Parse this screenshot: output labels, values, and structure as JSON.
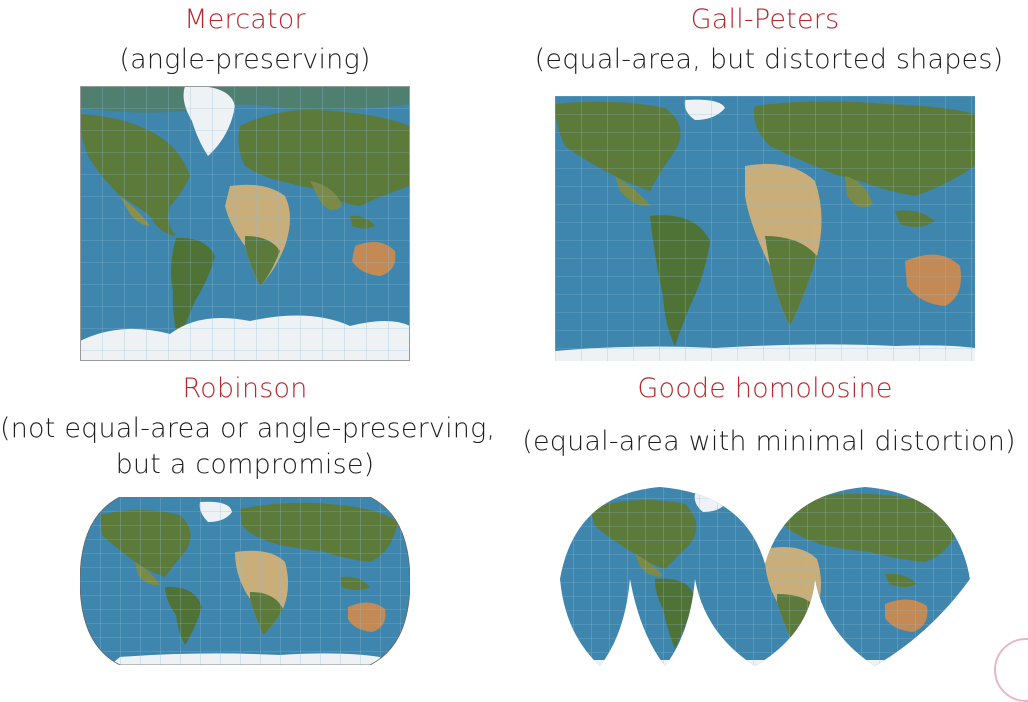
{
  "colors": {
    "title": "#b8262b",
    "ocean": "#3e86ad",
    "land_green": "#5c7a3a",
    "land_desert": "#c9ae7a",
    "ice": "#eef2f5",
    "grid": "#8fbcd6"
  },
  "projections": [
    {
      "name": "Mercator",
      "subtitle": "(angle-preserving)",
      "subtitle_lines": []
    },
    {
      "name": "Gall-Peters",
      "subtitle": "(equal-area, but distorted shapes)",
      "subtitle_lines": []
    },
    {
      "name": "Robinson",
      "subtitle": "",
      "subtitle_lines": [
        "(not equal-area or angle-preserving,",
        "but a compromise)"
      ]
    },
    {
      "name": "Goode homolosine",
      "subtitle": "(equal-area with minimal distortion)",
      "subtitle_lines": []
    }
  ]
}
